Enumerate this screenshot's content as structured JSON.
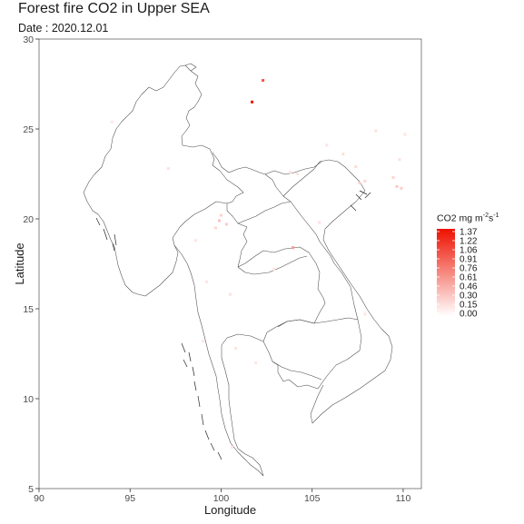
{
  "title": "Forest fire CO2 in Upper SEA",
  "subtitle": "Date : 2020.12.01",
  "colors": {
    "high": "#ee1100",
    "low": "#fff5f2",
    "border": "#4a4a4a",
    "axis": "#333333"
  },
  "chart_data": {
    "type": "scatter",
    "title": "Forest fire CO2 in Upper SEA",
    "subtitle": "Date : 2020.12.01",
    "xlabel": "Longitude",
    "ylabel": "Latitude",
    "xlim": [
      90,
      111
    ],
    "ylim": [
      5,
      30
    ],
    "xticks": [
      90,
      95,
      100,
      105,
      110
    ],
    "yticks": [
      5,
      10,
      15,
      20,
      25,
      30
    ],
    "grid": false,
    "legend": {
      "title_prefix": "CO2 mg m",
      "title_exp1": "-2",
      "title_mid": "s",
      "title_exp2": "-1",
      "placement": "right",
      "labels": [
        "1.37",
        "1.22",
        "1.06",
        "0.91",
        "0.76",
        "0.61",
        "0.46",
        "0.30",
        "0.15",
        "0.00"
      ],
      "max": 1.37
    },
    "points": [
      {
        "lon": 101.7,
        "lat": 26.5,
        "value": 1.37
      },
      {
        "lon": 102.3,
        "lat": 27.7,
        "value": 0.95
      },
      {
        "lon": 103.95,
        "lat": 18.4,
        "value": 0.55
      },
      {
        "lon": 99.9,
        "lat": 19.9,
        "value": 0.3
      },
      {
        "lon": 100.3,
        "lat": 19.7,
        "value": 0.25
      },
      {
        "lon": 100.0,
        "lat": 20.2,
        "value": 0.2
      },
      {
        "lon": 99.7,
        "lat": 19.5,
        "value": 0.18
      },
      {
        "lon": 109.65,
        "lat": 21.8,
        "value": 0.28
      },
      {
        "lon": 109.9,
        "lat": 21.7,
        "value": 0.24
      },
      {
        "lon": 109.45,
        "lat": 22.3,
        "value": 0.2
      },
      {
        "lon": 107.6,
        "lat": 22.0,
        "value": 0.22
      },
      {
        "lon": 107.9,
        "lat": 22.1,
        "value": 0.18
      },
      {
        "lon": 107.4,
        "lat": 22.9,
        "value": 0.15
      },
      {
        "lon": 106.7,
        "lat": 23.6,
        "value": 0.14
      },
      {
        "lon": 109.8,
        "lat": 23.3,
        "value": 0.12
      },
      {
        "lon": 108.5,
        "lat": 24.9,
        "value": 0.12
      },
      {
        "lon": 110.1,
        "lat": 24.7,
        "value": 0.1
      },
      {
        "lon": 105.8,
        "lat": 24.1,
        "value": 0.1
      },
      {
        "lon": 103.8,
        "lat": 22.6,
        "value": 0.12
      },
      {
        "lon": 104.2,
        "lat": 22.5,
        "value": 0.1
      },
      {
        "lon": 100.5,
        "lat": 15.8,
        "value": 0.12
      },
      {
        "lon": 98.6,
        "lat": 18.8,
        "value": 0.1
      },
      {
        "lon": 97.1,
        "lat": 22.8,
        "value": 0.1
      },
      {
        "lon": 94.0,
        "lat": 25.4,
        "value": 0.08
      },
      {
        "lon": 107.9,
        "lat": 14.7,
        "value": 0.1
      },
      {
        "lon": 99.2,
        "lat": 16.5,
        "value": 0.1
      },
      {
        "lon": 100.8,
        "lat": 12.8,
        "value": 0.1
      },
      {
        "lon": 100.6,
        "lat": 7.3,
        "value": 0.08
      },
      {
        "lon": 99.0,
        "lat": 13.2,
        "value": 0.1
      },
      {
        "lon": 102.9,
        "lat": 17.2,
        "value": 0.1
      },
      {
        "lon": 101.9,
        "lat": 12.0,
        "value": 0.1
      },
      {
        "lon": 105.4,
        "lat": 19.8,
        "value": 0.12
      }
    ]
  }
}
